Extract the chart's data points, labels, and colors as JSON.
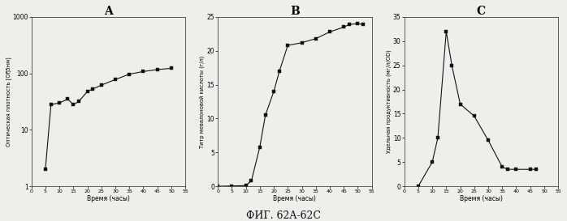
{
  "title_A": "A",
  "title_B": "B",
  "title_C": "C",
  "xlabel": "Время (часы)",
  "ylabel_A": "Оптическая плотность [ОҔ5нм]",
  "ylabel_B": "Титр мевалоновой кислоты (г/л)",
  "ylabel_C": "Удельная продуктивность (мг/л/OD)",
  "fig_label": "ФИГ. 62A-62C",
  "A_x": [
    5,
    7,
    10,
    13,
    15,
    17,
    20,
    22,
    25,
    30,
    35,
    40,
    45,
    50
  ],
  "A_y": [
    2.0,
    28,
    30,
    35,
    28,
    32,
    48,
    53,
    62,
    78,
    97,
    108,
    117,
    123
  ],
  "A_xlim": [
    0,
    55
  ],
  "A_ylim_log": [
    1,
    1000
  ],
  "A_yticks": [
    1,
    10,
    100,
    1000
  ],
  "A_xticks": [
    0,
    5,
    10,
    15,
    20,
    25,
    30,
    35,
    40,
    45,
    50,
    55
  ],
  "B_x": [
    0,
    5,
    10,
    12,
    15,
    17,
    20,
    22,
    25,
    30,
    35,
    40,
    45,
    47,
    50,
    52
  ],
  "B_y": [
    0.0,
    0.05,
    0.1,
    0.8,
    5.8,
    10.5,
    14.0,
    17.0,
    20.8,
    21.2,
    21.8,
    22.8,
    23.5,
    23.9,
    24.0,
    23.9
  ],
  "B_xlim": [
    0,
    55
  ],
  "B_ylim": [
    0,
    25
  ],
  "B_yticks": [
    0,
    5,
    10,
    15,
    20,
    25
  ],
  "B_xticks": [
    0,
    5,
    10,
    15,
    20,
    25,
    30,
    35,
    40,
    45,
    50,
    55
  ],
  "C_x": [
    5,
    10,
    12,
    15,
    17,
    20,
    25,
    30,
    35,
    37,
    40,
    45,
    47
  ],
  "C_y": [
    0.0,
    5.0,
    10.0,
    32.0,
    25.0,
    17.0,
    14.5,
    9.5,
    4.0,
    3.5,
    3.5,
    3.5,
    3.5
  ],
  "C_xlim": [
    0,
    55
  ],
  "C_ylim": [
    0,
    35
  ],
  "C_yticks": [
    0,
    5,
    10,
    15,
    20,
    25,
    30,
    35
  ],
  "C_xticks": [
    0,
    5,
    10,
    15,
    20,
    25,
    30,
    35,
    40,
    45,
    50,
    55
  ],
  "line_color": "#111111",
  "marker": "s",
  "marker_size": 2.8,
  "bg_color": "#f0eeea",
  "grid_color": "#aaaaaa",
  "dashed_line_color": "#999999",
  "spine_color": "#444444"
}
